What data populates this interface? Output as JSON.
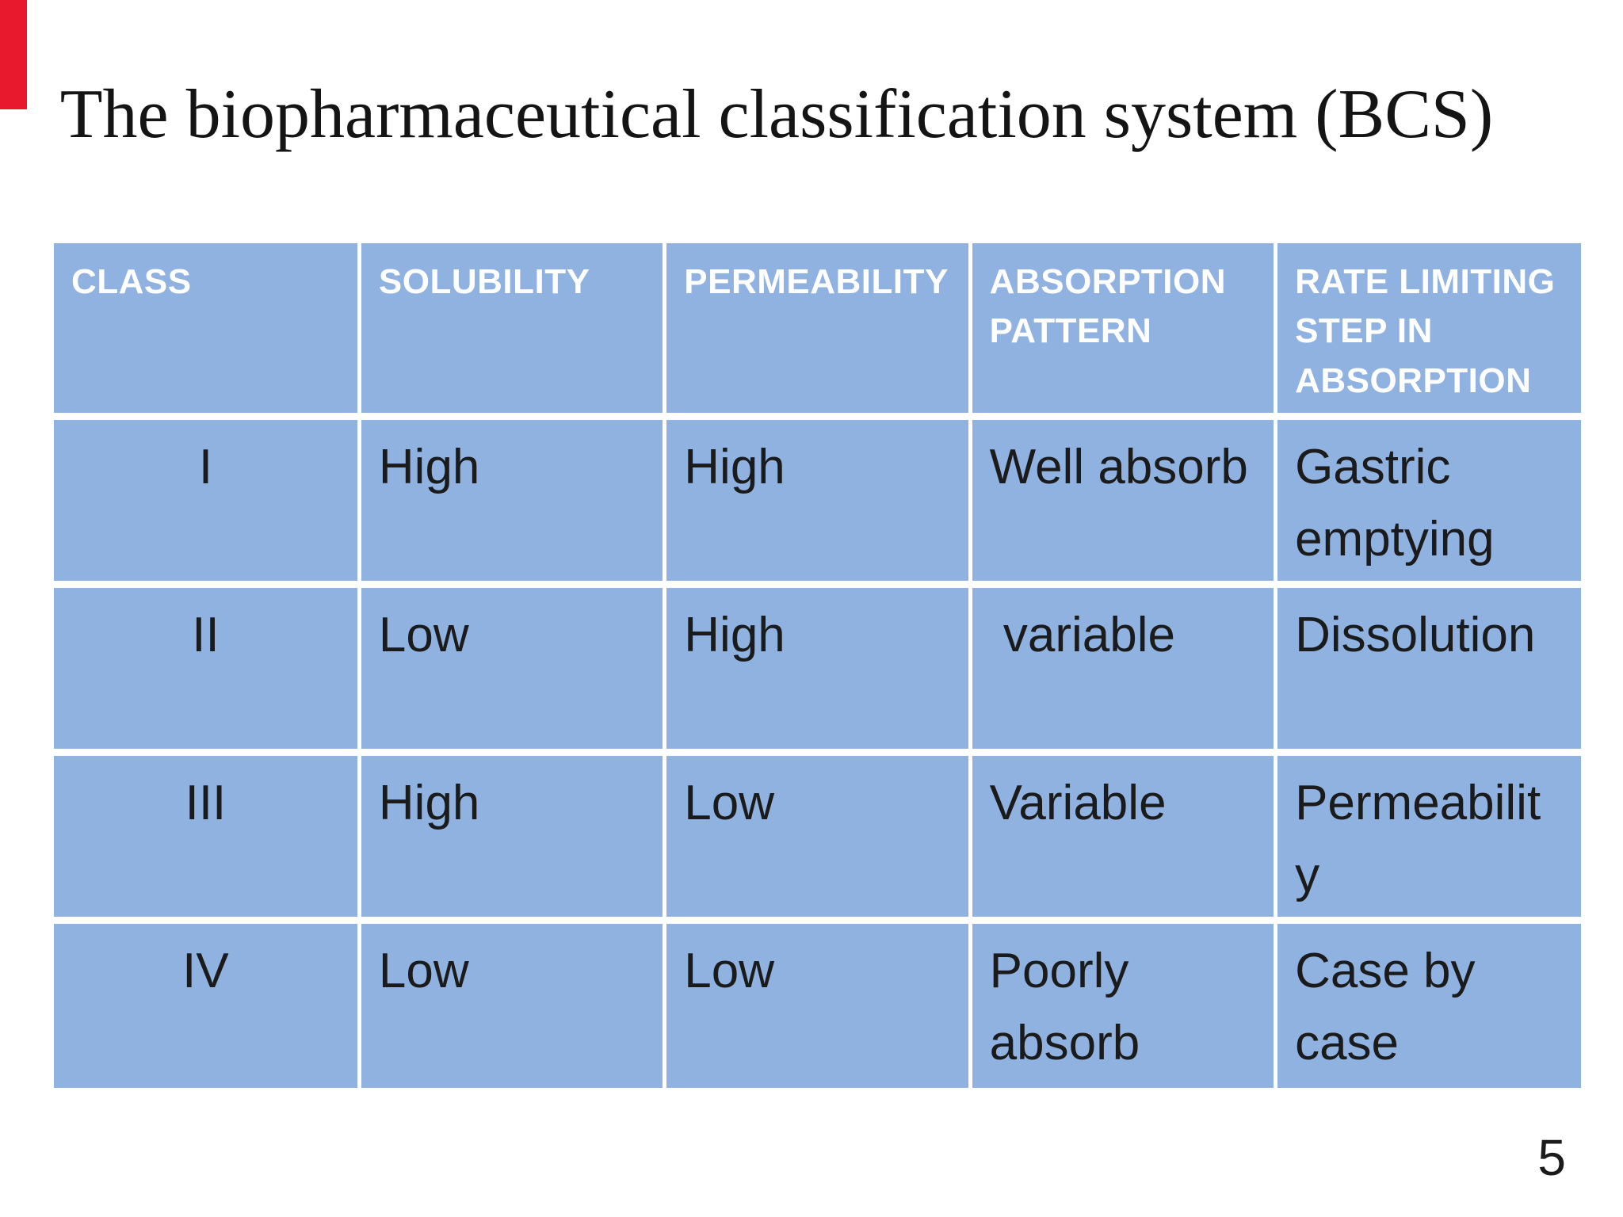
{
  "slide": {
    "title": "The biopharmaceutical classification system (BCS)",
    "page_number": "5",
    "accent_bar_color": "#e8192c",
    "background_color": "#ffffff"
  },
  "table": {
    "cell_bg_color": "#8fb2e1",
    "grid_color": "#ffffff",
    "header_text_color": "#ffffff",
    "body_text_color": "#1b1b1b",
    "columns": [
      "CLASS",
      "SOLUBILITY",
      "PERMEABILITY",
      "ABSORPTION PATTERN",
      "RATE LIMITING STEP IN ABSORPTION"
    ],
    "rows": [
      {
        "class": "I",
        "solubility": "High",
        "permeability": "High",
        "absorption_pattern": "Well absorb",
        "rate_limiting_step": "Gastric emptying"
      },
      {
        "class": "II",
        "solubility": "Low",
        "permeability": "High",
        "absorption_pattern": " variable",
        "rate_limiting_step": "Dissolution"
      },
      {
        "class": "III",
        "solubility": "High",
        "permeability": "Low",
        "absorption_pattern": "Variable",
        "rate_limiting_step": "Permeability"
      },
      {
        "class": "IV",
        "solubility": "Low",
        "permeability": "Low",
        "absorption_pattern": "Poorly absorb",
        "rate_limiting_step": "Case by case"
      }
    ]
  }
}
